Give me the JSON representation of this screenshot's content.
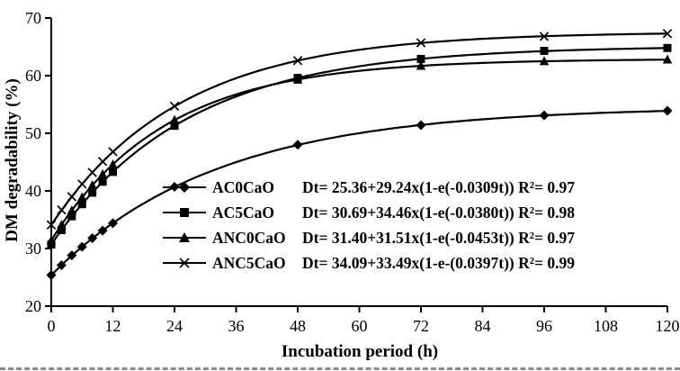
{
  "chart_data": {
    "type": "line",
    "title": "",
    "xlabel": "Incubation period (h)",
    "ylabel": "DM degradability (%)",
    "xlim": [
      0,
      120
    ],
    "ylim": [
      20,
      70
    ],
    "x_ticks": [
      0,
      12,
      24,
      36,
      48,
      60,
      72,
      84,
      96,
      108,
      120
    ],
    "y_ticks": [
      20,
      30,
      40,
      50,
      60,
      70
    ],
    "grid": false,
    "legend_position": "inside-lower-left",
    "line_color": "#000000",
    "x": [
      0,
      2,
      4,
      6,
      8,
      10,
      12,
      24,
      48,
      72,
      96,
      120
    ],
    "series": [
      {
        "name": "AC0CaO",
        "marker": "diamond",
        "color": "#000000",
        "equation": "Dt= 25.36+29.24x(1-e(-0.0309t)) R²= 0.97",
        "model": {
          "a": 25.36,
          "b": 29.24,
          "k": 0.0309
        },
        "values": [
          25.4,
          27.1,
          28.8,
          30.3,
          31.8,
          33.1,
          34.4,
          40.7,
          48.0,
          51.4,
          53.1,
          53.9
        ]
      },
      {
        "name": "AC5CaO",
        "marker": "square",
        "color": "#000000",
        "equation": "Dt= 30.69+34.46x(1-e(-0.0380t)) R²= 0.98",
        "model": {
          "a": 30.69,
          "b": 34.46,
          "k": 0.038
        },
        "values": [
          30.7,
          33.2,
          35.6,
          37.7,
          39.7,
          41.6,
          43.3,
          51.3,
          59.6,
          62.9,
          64.3,
          64.8
        ]
      },
      {
        "name": "ANC0CaO",
        "marker": "triangle",
        "color": "#000000",
        "equation": "Dt= 31.40+31.51x(1-e(-0.0453t)) R²= 0.97",
        "model": {
          "a": 31.4,
          "b": 31.51,
          "k": 0.0453
        },
        "values": [
          31.4,
          34.1,
          36.6,
          38.9,
          41.0,
          42.9,
          44.6,
          52.3,
          59.3,
          61.7,
          62.5,
          62.8
        ]
      },
      {
        "name": "ANC5CaO",
        "marker": "x",
        "color": "#000000",
        "equation": "Dt= 34.09+33.49x(1-e-(0.0397t)) R²= 0.99",
        "model": {
          "a": 34.09,
          "b": 33.49,
          "k": 0.0397
        },
        "values": [
          34.1,
          36.7,
          39.0,
          41.2,
          43.2,
          45.1,
          46.8,
          54.7,
          62.6,
          65.7,
          66.8,
          67.3
        ]
      }
    ]
  },
  "colors": {
    "axis": "#000000",
    "background": "#ffffff"
  }
}
